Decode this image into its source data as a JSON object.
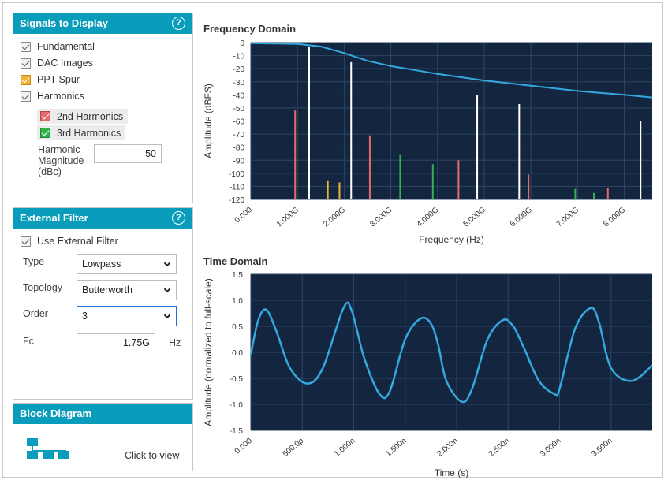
{
  "signals_panel": {
    "title": "Signals to Display",
    "help": "?",
    "items": [
      {
        "label": "Fundamental",
        "checked": true,
        "color": "#f3f3f3"
      },
      {
        "label": "DAC Images",
        "checked": true,
        "color": "#f3f3f3"
      },
      {
        "label": "PPT Spur",
        "checked": true,
        "color": "#f2b33a"
      },
      {
        "label": "Harmonics",
        "checked": true,
        "color": "#f3f3f3"
      }
    ],
    "sub_items": [
      {
        "label": "2nd Harmonics",
        "checked": true,
        "color": "#e56a6a"
      },
      {
        "label": "3rd Harmonics",
        "checked": true,
        "color": "#2fb24b"
      }
    ],
    "harmonic_magnitude": {
      "label_line1": "Harmonic",
      "label_line2": "Magnitude",
      "label_line3": "(dBc)",
      "value": "-50"
    }
  },
  "filter_panel": {
    "title": "External Filter",
    "help": "?",
    "use_filter": {
      "label": "Use External Filter",
      "checked": true
    },
    "type": {
      "label": "Type",
      "value": "Lowpass"
    },
    "topology": {
      "label": "Topology",
      "value": "Butterworth"
    },
    "order": {
      "label": "Order",
      "value": "3"
    },
    "fc": {
      "label": "Fc",
      "value": "1.75G",
      "unit": "Hz"
    }
  },
  "block_panel": {
    "title": "Block Diagram",
    "link": "Click to view"
  },
  "freq_chart": {
    "title": "Frequency Domain",
    "xlabel": "Frequency (Hz)",
    "ylabel": "Amplitude (dBFS)",
    "bg": "#14263f",
    "curve_color": "#33a9e0"
  },
  "time_chart": {
    "title": "Time Domain",
    "xlabel": "Time (s)",
    "ylabel": "Amplitude (normalized to full-scale)",
    "bg": "#14263f",
    "curve_color": "#33a9e0"
  },
  "chart_data": [
    {
      "type": "bar",
      "title": "Frequency Domain",
      "xlabel": "Frequency (Hz)",
      "ylabel": "Amplitude (dBFS)",
      "xlim": [
        0,
        8.6
      ],
      "ylim": [
        -120,
        0
      ],
      "x_ticks": [
        "0.000",
        "1.000G",
        "2.000G",
        "3.000G",
        "4.000G",
        "5.000G",
        "6.000G",
        "7.000G",
        "8.000G"
      ],
      "y_ticks": [
        "0",
        "-10",
        "-20",
        "-30",
        "-40",
        "-50",
        "-60",
        "-70",
        "-80",
        "-90",
        "-100",
        "-110",
        "-120"
      ],
      "series": [
        {
          "color": "#ffffff",
          "points": [
            [
              1.25,
              -3
            ],
            [
              2.15,
              -15
            ],
            [
              4.85,
              -40
            ],
            [
              5.75,
              -47
            ],
            [
              8.35,
              -60
            ]
          ]
        },
        {
          "color": "#e56a6a",
          "points": [
            [
              0.95,
              -52
            ],
            [
              2.55,
              -71
            ],
            [
              4.45,
              -90
            ],
            [
              5.95,
              -101
            ],
            [
              7.65,
              -111
            ]
          ]
        },
        {
          "color": "#2fb24b",
          "points": [
            [
              3.2,
              -86
            ],
            [
              3.9,
              -93
            ],
            [
              6.95,
              -112
            ],
            [
              7.35,
              -115
            ]
          ]
        },
        {
          "color": "#f2b33a",
          "points": [
            [
              1.65,
              -106
            ],
            [
              1.9,
              -107
            ]
          ]
        }
      ],
      "filter_curve": [
        [
          0,
          -0.5
        ],
        [
          1.0,
          -1
        ],
        [
          1.5,
          -3
        ],
        [
          2.0,
          -8
        ],
        [
          2.5,
          -14
        ],
        [
          3.0,
          -18
        ],
        [
          4.0,
          -24
        ],
        [
          5.0,
          -29
        ],
        [
          6.0,
          -33
        ],
        [
          7.0,
          -37
        ],
        [
          8.0,
          -40
        ],
        [
          8.6,
          -42
        ]
      ]
    },
    {
      "type": "line",
      "title": "Time Domain",
      "xlabel": "Time (s)",
      "ylabel": "Amplitude (normalized to full-scale)",
      "xlim": [
        0,
        3.9
      ],
      "ylim": [
        -1.5,
        1.5
      ],
      "x_ticks": [
        "0.000",
        "500.0p",
        "1.000n",
        "1.500n",
        "2.000n",
        "2.500n",
        "3.000n",
        "3.500n"
      ],
      "y_ticks": [
        "1.5",
        "1.0",
        "0.5",
        "0.0",
        "-0.5",
        "-1.0",
        "-1.5"
      ],
      "series": [
        {
          "x": [
            0,
            0.07,
            0.15,
            0.25,
            0.38,
            0.55,
            0.7,
            0.9,
            0.98,
            1.1,
            1.25,
            1.35,
            1.5,
            1.65,
            1.75,
            1.82,
            1.9,
            2.05,
            2.15,
            2.3,
            2.45,
            2.55,
            2.65,
            2.8,
            2.95,
            3.0,
            3.15,
            3.3,
            3.38,
            3.5,
            3.7,
            3.9
          ],
          "y": [
            -0.05,
            0.6,
            0.82,
            0.4,
            -0.3,
            -0.6,
            -0.3,
            0.85,
            0.8,
            -0.1,
            -0.8,
            -0.75,
            0.25,
            0.65,
            0.55,
            0.15,
            -0.55,
            -0.95,
            -0.7,
            0.25,
            0.62,
            0.5,
            0.1,
            -0.55,
            -0.8,
            -0.7,
            0.45,
            0.85,
            0.6,
            -0.3,
            -0.55,
            -0.25
          ]
        }
      ]
    }
  ]
}
